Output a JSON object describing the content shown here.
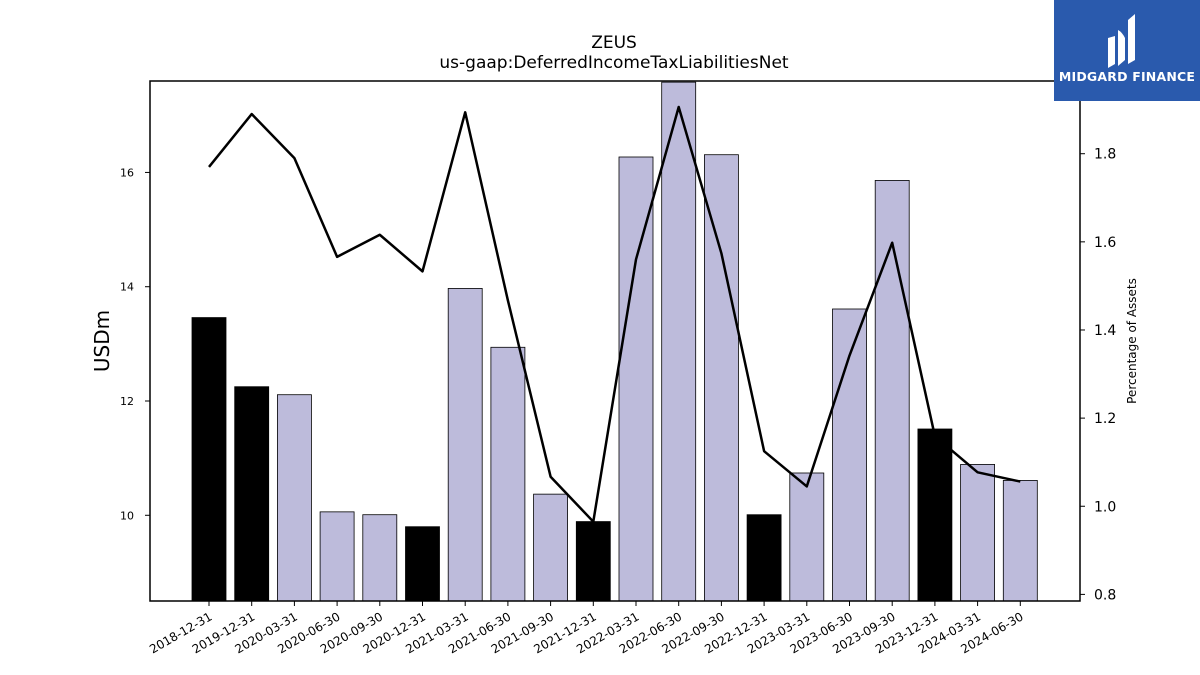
{
  "brand": {
    "name": "MIDGARD FINANCE",
    "bg_color": "#2a5aad"
  },
  "chart_data": {
    "type": "bar",
    "title": "ZEUS",
    "subtitle": "us-gaap:DeferredIncomeTaxLiabilitiesNet",
    "ylabel": "USDm",
    "ylabel_right": "Percentage of Assets",
    "categories": [
      "2018-12-31",
      "2019-12-31",
      "2020-03-31",
      "2020-06-30",
      "2020-09-30",
      "2020-12-31",
      "2021-03-31",
      "2021-06-30",
      "2021-09-30",
      "2021-12-31",
      "2022-03-31",
      "2022-06-30",
      "2022-09-30",
      "2022-12-31",
      "2023-03-31",
      "2023-06-30",
      "2023-09-30",
      "2023-12-31",
      "2024-03-31",
      "2024-06-30"
    ],
    "series": [
      {
        "values": [
          13.46,
          12.25,
          12.11,
          10.06,
          10.01,
          9.8,
          13.97,
          12.94,
          10.37,
          9.89,
          16.27,
          17.58,
          16.31,
          10.01,
          10.74,
          13.61,
          15.86,
          11.51,
          10.89,
          10.61
        ],
        "colors": [
          "#000000",
          "#000000",
          "#bdbbdb",
          "#bdbbdb",
          "#bdbbdb",
          "#000000",
          "#bdbbdb",
          "#bdbbdb",
          "#bdbbdb",
          "#000000",
          "#bdbbdb",
          "#bdbbdb",
          "#bdbbdb",
          "#000000",
          "#bdbbdb",
          "#bdbbdb",
          "#bdbbdb",
          "#000000",
          "#bdbbdb",
          "#bdbbdb"
        ]
      },
      {
        "axis": "right",
        "type": "line",
        "color": "#000000",
        "values": [
          1.77,
          1.89,
          1.79,
          1.566,
          1.616,
          1.533,
          1.894,
          1.467,
          1.067,
          0.965,
          1.56,
          1.906,
          1.574,
          1.125,
          1.045,
          1.342,
          1.598,
          1.159,
          1.077,
          1.056
        ]
      }
    ],
    "ylim": [
      8.5,
      17.6
    ],
    "y2lim": [
      0.785,
      1.965
    ],
    "yticks": [
      "10",
      "12",
      "14",
      "16"
    ],
    "y2ticks": [
      "0.8",
      "1.0",
      "1.2",
      "1.4",
      "1.6",
      "1.8"
    ],
    "grid": false,
    "legend": "none"
  }
}
